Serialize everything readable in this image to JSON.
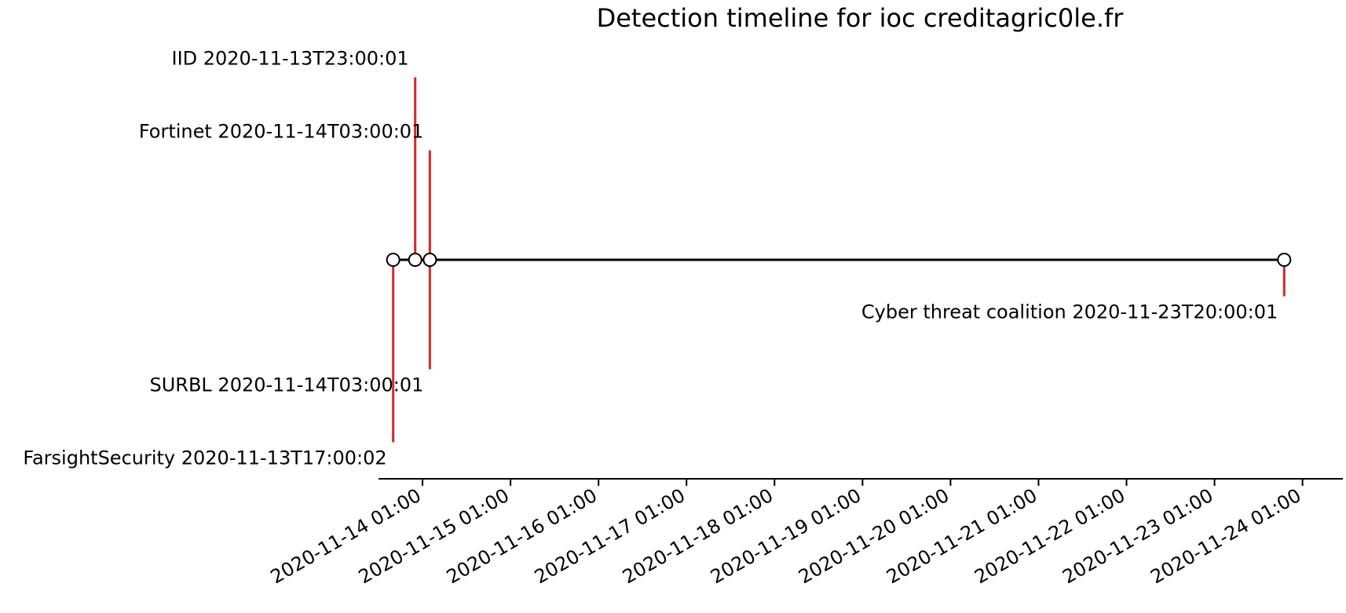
{
  "chart_data": {
    "type": "timeline",
    "title": "Detection timeline for ioc creditagric0le.fr",
    "x_axis": {
      "type": "datetime",
      "range": [
        "2020-11-13T13:00:00",
        "2020-11-24T12:00:00"
      ],
      "ticks": [
        {
          "value": "2020-11-14T01:00",
          "label": "2020-11-14 01:00"
        },
        {
          "value": "2020-11-15T01:00",
          "label": "2020-11-15 01:00"
        },
        {
          "value": "2020-11-16T01:00",
          "label": "2020-11-16 01:00"
        },
        {
          "value": "2020-11-17T01:00",
          "label": "2020-11-17 01:00"
        },
        {
          "value": "2020-11-18T01:00",
          "label": "2020-11-18 01:00"
        },
        {
          "value": "2020-11-19T01:00",
          "label": "2020-11-19 01:00"
        },
        {
          "value": "2020-11-20T01:00",
          "label": "2020-11-20 01:00"
        },
        {
          "value": "2020-11-21T01:00",
          "label": "2020-11-21 01:00"
        },
        {
          "value": "2020-11-22T01:00",
          "label": "2020-11-22 01:00"
        },
        {
          "value": "2020-11-23T01:00",
          "label": "2020-11-23 01:00"
        },
        {
          "value": "2020-11-24T01:00",
          "label": "2020-11-24 01:00"
        }
      ]
    },
    "y_range": [
      -6,
      6
    ],
    "grid": false,
    "events": [
      {
        "source": "FarsightSecurity",
        "time": "2020-11-13T17:00:02",
        "label": "FarsightSecurity 2020-11-13T17:00:02",
        "level": -5
      },
      {
        "source": "IID",
        "time": "2020-11-13T23:00:01",
        "label": "IID 2020-11-13T23:00:01",
        "level": 5
      },
      {
        "source": "SURBL",
        "time": "2020-11-14T03:00:01",
        "label": "SURBL 2020-11-14T03:00:01",
        "level": -3
      },
      {
        "source": "Fortinet",
        "time": "2020-11-14T03:00:01",
        "label": "Fortinet 2020-11-14T03:00:01",
        "level": 3
      },
      {
        "source": "Cyber threat coalition",
        "time": "2020-11-23T20:00:01",
        "label": "Cyber threat coalition 2020-11-23T20:00:01",
        "level": -1
      }
    ],
    "colors": {
      "stem": "#d62728",
      "baseline": "#000000",
      "marker_fill": "#ffffff",
      "marker_edge": "#000000"
    }
  }
}
